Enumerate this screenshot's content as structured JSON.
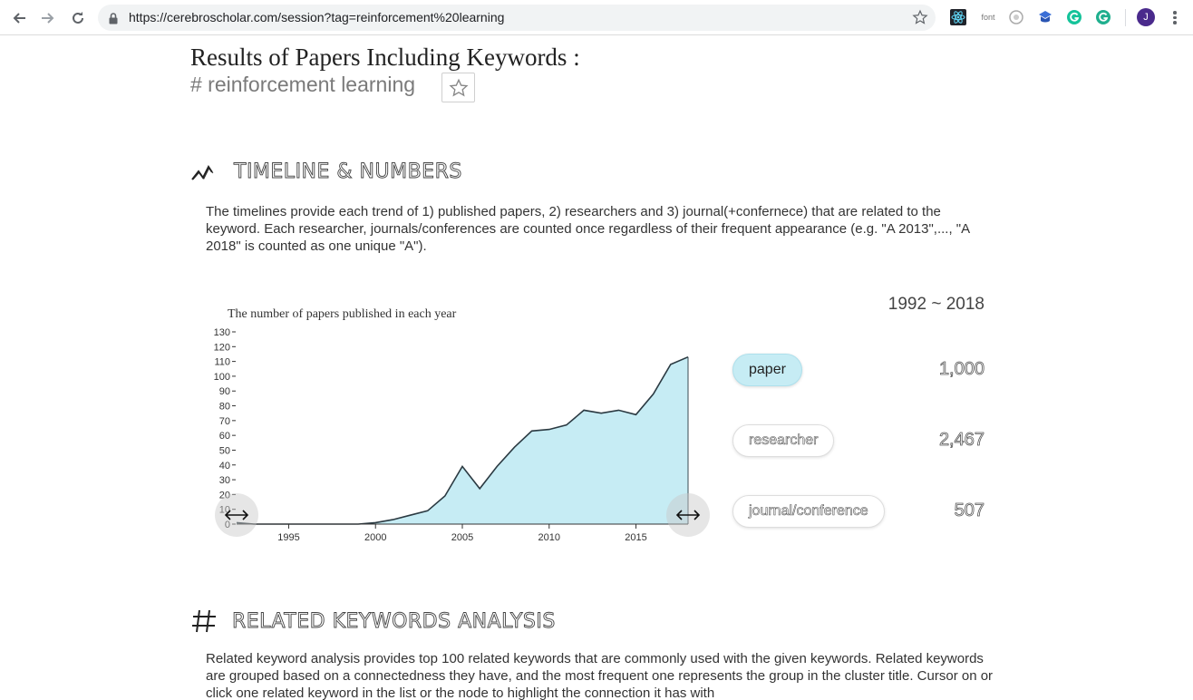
{
  "browser": {
    "url": "https://cerebroscholar.com/session?tag=reinforcement%20learning",
    "extensions": [
      "react-devtools-icon",
      "font-extension-icon",
      "recorder-icon",
      "cap-icon",
      "grammarly-icon",
      "grammarly-alt-icon"
    ],
    "font_ext_label": "font",
    "avatar_initial": "J"
  },
  "page": {
    "results_title": "Results of Papers Including Keywords :",
    "keyword": "# reinforcement learning"
  },
  "timeline": {
    "heading": "TIMELINE & NUMBERS",
    "description": "The timelines provide each trend of 1) published papers, 2) researchers and 3) journal(+confernece) that are related to the keyword. Each researcher, journals/conferences are counted once regardless of their frequent appearance (e.g. \"A 2013\",..., \"A 2018\" is counted as one unique \"A\").",
    "year_range": "1992 ~ 2018",
    "stats": [
      {
        "label": "paper",
        "value": "1,000",
        "active": true
      },
      {
        "label": "researcher",
        "value": "2,467",
        "active": false
      },
      {
        "label": "journal/conference",
        "value": "507",
        "active": false
      }
    ]
  },
  "related": {
    "heading": "RELATED KEYWORDS ANALYSIS",
    "description": "Related keyword analysis provides top 100 related keywords that are commonly used with the given keywords. Related keywords are grouped based on a connectedness they have, and the most frequent one represents the group in the cluster title. Cursor on or click one related keyword in the list or the node to highlight the connection it has with"
  },
  "colors": {
    "area_fill": "#c6ecf4",
    "line": "#2b3a42",
    "pill_active": "#c6ecf4"
  },
  "chart_data": {
    "type": "area",
    "title": "The number of papers published in each year",
    "xlabel": "",
    "ylabel": "",
    "x": [
      1992,
      1993,
      1994,
      1995,
      1996,
      1997,
      1998,
      1999,
      2000,
      2001,
      2002,
      2003,
      2004,
      2005,
      2006,
      2007,
      2008,
      2009,
      2010,
      2011,
      2012,
      2013,
      2014,
      2015,
      2016,
      2017,
      2018
    ],
    "values": [
      1,
      0,
      0,
      0,
      0,
      0,
      0,
      0,
      1,
      3,
      6,
      9,
      19,
      39,
      24,
      39,
      52,
      63,
      64,
      67,
      77,
      75,
      77,
      74,
      88,
      108,
      113
    ],
    "xlim": [
      1992,
      2018
    ],
    "ylim": [
      0,
      130
    ],
    "xticks": [
      1995,
      2000,
      2005,
      2010,
      2015
    ],
    "yticks": [
      0,
      10,
      20,
      30,
      40,
      50,
      60,
      70,
      80,
      90,
      100,
      110,
      120,
      130
    ],
    "grid": false,
    "legend": "none"
  }
}
